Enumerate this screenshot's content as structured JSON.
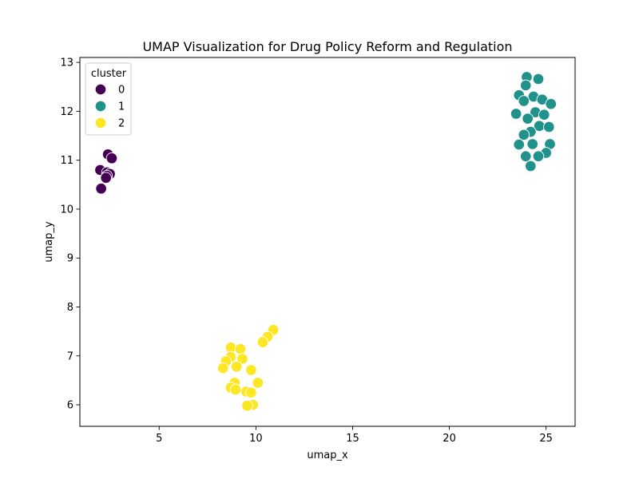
{
  "chart_data": {
    "type": "scatter",
    "title": "UMAP Visualization for Drug Policy Reform and Regulation",
    "xlabel": "umap_x",
    "ylabel": "umap_y",
    "xlim": [
      0.9,
      26.5
    ],
    "ylim": [
      5.56,
      13.1
    ],
    "xticks": [
      5,
      10,
      15,
      20,
      25
    ],
    "yticks": [
      6,
      7,
      8,
      9,
      10,
      11,
      12,
      13
    ],
    "grid": false,
    "legend": {
      "title": "cluster",
      "placement": "top-left",
      "entries": [
        "0",
        "1",
        "2"
      ]
    },
    "series": [
      {
        "name": "0",
        "color": "#440154",
        "points": [
          [
            2.35,
            11.12
          ],
          [
            2.55,
            11.04
          ],
          [
            1.95,
            10.8
          ],
          [
            2.3,
            10.75
          ],
          [
            2.45,
            10.72
          ],
          [
            2.3,
            10.68
          ],
          [
            2.25,
            10.64
          ],
          [
            2.0,
            10.42
          ]
        ]
      },
      {
        "name": "1",
        "color": "#21918c",
        "points": [
          [
            24.0,
            12.7
          ],
          [
            24.6,
            12.66
          ],
          [
            23.95,
            12.53
          ],
          [
            23.6,
            12.33
          ],
          [
            24.35,
            12.3
          ],
          [
            24.8,
            12.24
          ],
          [
            23.85,
            12.21
          ],
          [
            25.25,
            12.15
          ],
          [
            24.45,
            11.98
          ],
          [
            23.45,
            11.95
          ],
          [
            24.9,
            11.93
          ],
          [
            24.05,
            11.85
          ],
          [
            24.65,
            11.7
          ],
          [
            25.15,
            11.68
          ],
          [
            24.2,
            11.58
          ],
          [
            23.85,
            11.52
          ],
          [
            23.6,
            11.32
          ],
          [
            24.3,
            11.33
          ],
          [
            25.2,
            11.33
          ],
          [
            25.0,
            11.15
          ],
          [
            23.95,
            11.08
          ],
          [
            24.6,
            11.08
          ],
          [
            24.2,
            10.88
          ]
        ]
      },
      {
        "name": "2",
        "color": "#fde725",
        "points": [
          [
            10.9,
            7.53
          ],
          [
            10.6,
            7.39
          ],
          [
            10.35,
            7.28
          ],
          [
            8.7,
            7.17
          ],
          [
            9.2,
            7.14
          ],
          [
            8.7,
            6.98
          ],
          [
            9.3,
            6.94
          ],
          [
            8.45,
            6.89
          ],
          [
            9.0,
            6.78
          ],
          [
            8.3,
            6.75
          ],
          [
            9.75,
            6.71
          ],
          [
            8.9,
            6.45
          ],
          [
            10.1,
            6.45
          ],
          [
            8.7,
            6.35
          ],
          [
            8.95,
            6.31
          ],
          [
            9.5,
            6.27
          ],
          [
            9.75,
            6.25
          ],
          [
            9.85,
            6.0
          ],
          [
            9.55,
            5.98
          ]
        ]
      }
    ]
  }
}
